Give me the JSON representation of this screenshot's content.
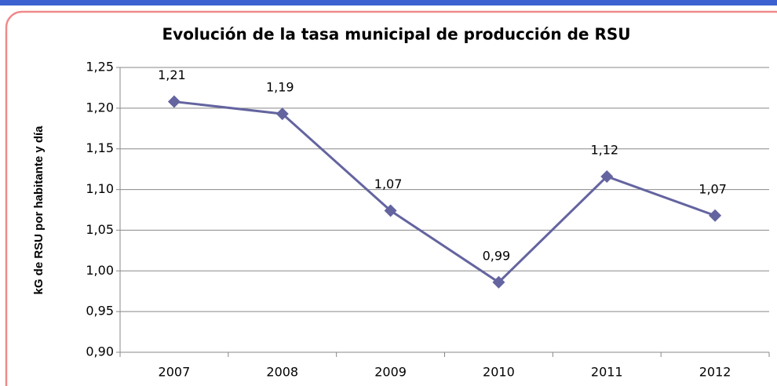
{
  "chart_data": {
    "type": "line",
    "title": "Evolución de la tasa municipal de producción de RSU",
    "y_label": "kG de RSU por habitante y día",
    "categories": [
      "2007",
      "2008",
      "2009",
      "2010",
      "2011",
      "2012"
    ],
    "series": [
      {
        "name": "RSU",
        "color": "#6464a0",
        "values": [
          1.208,
          1.193,
          1.074,
          0.986,
          1.116,
          1.068
        ],
        "value_labels": [
          "1,21",
          "1,19",
          "1,07",
          "0,99",
          "1,12",
          "1,07"
        ]
      }
    ],
    "ylim": [
      0.9,
      1.25
    ],
    "yticks": [
      {
        "value": 0.9,
        "label": "0,90"
      },
      {
        "value": 0.95,
        "label": "0,95"
      },
      {
        "value": 1.0,
        "label": "1,00"
      },
      {
        "value": 1.05,
        "label": "1,05"
      },
      {
        "value": 1.1,
        "label": "1,10"
      },
      {
        "value": 1.15,
        "label": "1,15"
      },
      {
        "value": 1.2,
        "label": "1,20"
      },
      {
        "value": 1.25,
        "label": "1,25"
      }
    ],
    "grid": true
  }
}
